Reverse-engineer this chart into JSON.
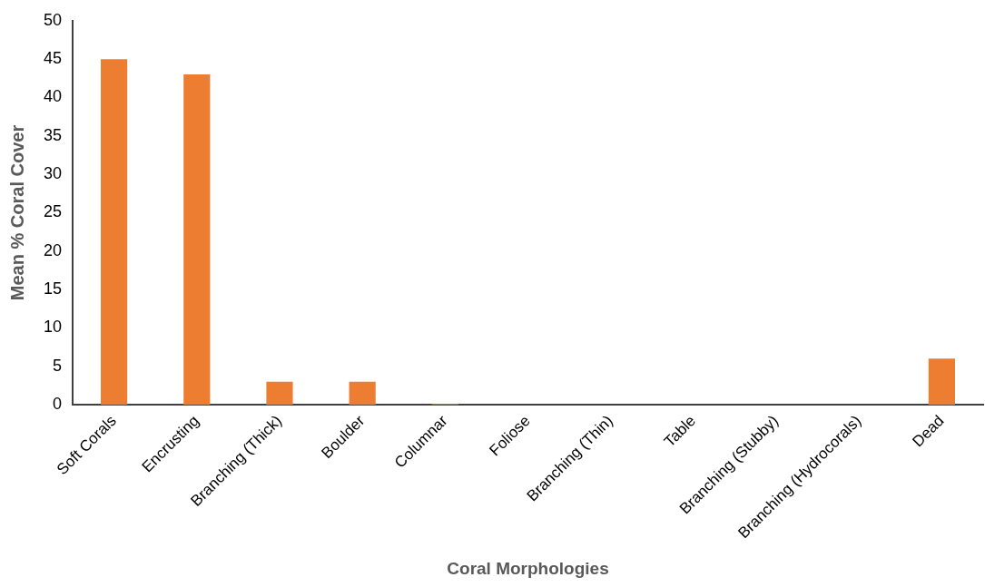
{
  "chart_data": {
    "type": "bar",
    "xlabel": "Coral Morphologies",
    "ylabel": "Mean % Coral Cover",
    "categories": [
      "Soft Corals",
      "Encrusting",
      "Branching (Thick)",
      "Boulder",
      "Columnar",
      "Foliose",
      "Branching (Thin)",
      "Table",
      "Branching (Stubby)",
      "Branching (Hydrocorals)",
      "Dead"
    ],
    "values": [
      45,
      43,
      3,
      3,
      0.1,
      0,
      0,
      0,
      0,
      0,
      6
    ],
    "color": "#ed7d31",
    "ylim": [
      0,
      50
    ],
    "yticks": [
      0,
      5,
      10,
      15,
      20,
      25,
      30,
      35,
      40,
      45,
      50
    ],
    "grid": false,
    "legend": false
  }
}
